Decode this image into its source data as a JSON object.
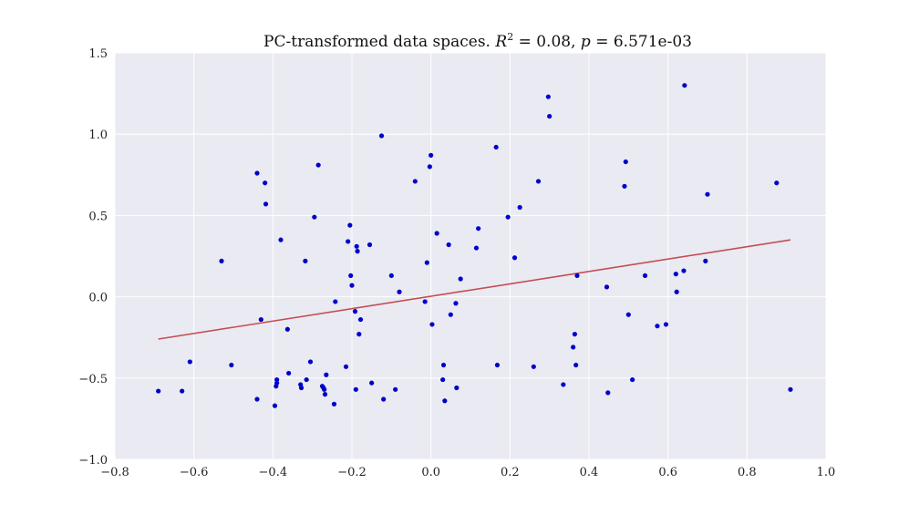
{
  "chart_data": {
    "type": "scatter",
    "title": {
      "prefix": "PC-transformed data spaces. ",
      "r2_symbol": "R",
      "r2_exponent": "2",
      "r2_value": " = 0.08, ",
      "p_symbol": "p",
      "p_value": " = 6.571e-03"
    },
    "xlabel": "",
    "ylabel": "",
    "xlim": [
      -0.8,
      1.0
    ],
    "ylim": [
      -1.0,
      1.5
    ],
    "x_ticks": [
      -0.8,
      -0.6,
      -0.4,
      -0.2,
      0.0,
      0.2,
      0.4,
      0.6,
      0.8,
      1.0
    ],
    "x_tick_labels": [
      "−0.8",
      "−0.6",
      "−0.4",
      "−0.2",
      "0.0",
      "0.2",
      "0.4",
      "0.6",
      "0.8",
      "1.0"
    ],
    "y_ticks": [
      -1.0,
      -0.5,
      0.0,
      0.5,
      1.0,
      1.5
    ],
    "y_tick_labels": [
      "−1.0",
      "−0.5",
      "0.0",
      "0.5",
      "1.0",
      "1.5"
    ],
    "grid": true,
    "colors": {
      "background": "#eaeaf2",
      "points": "#0000cc",
      "fit_line": "#c44e52",
      "grid": "#ffffff"
    },
    "points": [
      [
        -0.69,
        -0.58
      ],
      [
        -0.63,
        -0.58
      ],
      [
        -0.61,
        -0.4
      ],
      [
        -0.53,
        0.22
      ],
      [
        -0.505,
        -0.42
      ],
      [
        -0.44,
        0.76
      ],
      [
        -0.44,
        -0.63
      ],
      [
        -0.43,
        -0.14
      ],
      [
        -0.42,
        0.7
      ],
      [
        -0.418,
        0.57
      ],
      [
        -0.395,
        -0.67
      ],
      [
        -0.392,
        -0.55
      ],
      [
        -0.39,
        -0.51
      ],
      [
        -0.39,
        -0.53
      ],
      [
        -0.38,
        0.35
      ],
      [
        -0.363,
        -0.2
      ],
      [
        -0.36,
        -0.47
      ],
      [
        -0.33,
        -0.54
      ],
      [
        -0.328,
        -0.56
      ],
      [
        -0.318,
        0.22
      ],
      [
        -0.315,
        -0.51
      ],
      [
        -0.305,
        -0.4
      ],
      [
        -0.295,
        0.49
      ],
      [
        -0.285,
        0.81
      ],
      [
        -0.275,
        -0.55
      ],
      [
        -0.272,
        -0.56
      ],
      [
        -0.27,
        -0.57
      ],
      [
        -0.268,
        -0.6
      ],
      [
        -0.265,
        -0.48
      ],
      [
        -0.245,
        -0.66
      ],
      [
        -0.242,
        -0.03
      ],
      [
        -0.215,
        -0.43
      ],
      [
        -0.21,
        0.34
      ],
      [
        -0.205,
        0.44
      ],
      [
        -0.203,
        0.13
      ],
      [
        -0.2,
        0.07
      ],
      [
        -0.192,
        -0.09
      ],
      [
        -0.19,
        -0.57
      ],
      [
        -0.188,
        0.31
      ],
      [
        -0.186,
        0.28
      ],
      [
        -0.182,
        -0.23
      ],
      [
        -0.178,
        -0.14
      ],
      [
        -0.155,
        0.32
      ],
      [
        -0.15,
        -0.53
      ],
      [
        -0.125,
        0.99
      ],
      [
        -0.12,
        -0.63
      ],
      [
        -0.1,
        0.13
      ],
      [
        -0.09,
        -0.57
      ],
      [
        -0.08,
        0.03
      ],
      [
        -0.04,
        0.71
      ],
      [
        -0.015,
        -0.03
      ],
      [
        -0.01,
        0.21
      ],
      [
        -0.003,
        0.8
      ],
      [
        0.0,
        0.87
      ],
      [
        0.003,
        -0.17
      ],
      [
        0.015,
        0.39
      ],
      [
        0.03,
        -0.51
      ],
      [
        0.032,
        -0.42
      ],
      [
        0.035,
        -0.64
      ],
      [
        0.045,
        0.32
      ],
      [
        0.05,
        -0.11
      ],
      [
        0.063,
        -0.04
      ],
      [
        0.065,
        -0.56
      ],
      [
        0.075,
        0.11
      ],
      [
        0.115,
        0.3
      ],
      [
        0.12,
        0.42
      ],
      [
        0.165,
        0.92
      ],
      [
        0.168,
        -0.42
      ],
      [
        0.195,
        0.49
      ],
      [
        0.212,
        0.24
      ],
      [
        0.225,
        0.55
      ],
      [
        0.26,
        -0.43
      ],
      [
        0.272,
        0.71
      ],
      [
        0.297,
        1.23
      ],
      [
        0.3,
        1.11
      ],
      [
        0.335,
        -0.54
      ],
      [
        0.36,
        -0.31
      ],
      [
        0.364,
        -0.23
      ],
      [
        0.367,
        -0.42
      ],
      [
        0.37,
        0.13
      ],
      [
        0.445,
        0.06
      ],
      [
        0.448,
        -0.59
      ],
      [
        0.49,
        0.68
      ],
      [
        0.493,
        0.83
      ],
      [
        0.5,
        -0.11
      ],
      [
        0.51,
        -0.51
      ],
      [
        0.542,
        0.13
      ],
      [
        0.573,
        -0.18
      ],
      [
        0.595,
        -0.17
      ],
      [
        0.62,
        0.14
      ],
      [
        0.622,
        0.03
      ],
      [
        0.64,
        0.16
      ],
      [
        0.642,
        1.3
      ],
      [
        0.695,
        0.22
      ],
      [
        0.7,
        0.63
      ],
      [
        0.875,
        0.7
      ],
      [
        0.91,
        -0.57
      ]
    ],
    "fit_line": {
      "x": [
        -0.69,
        0.91
      ],
      "y": [
        -0.26,
        0.35
      ]
    }
  }
}
